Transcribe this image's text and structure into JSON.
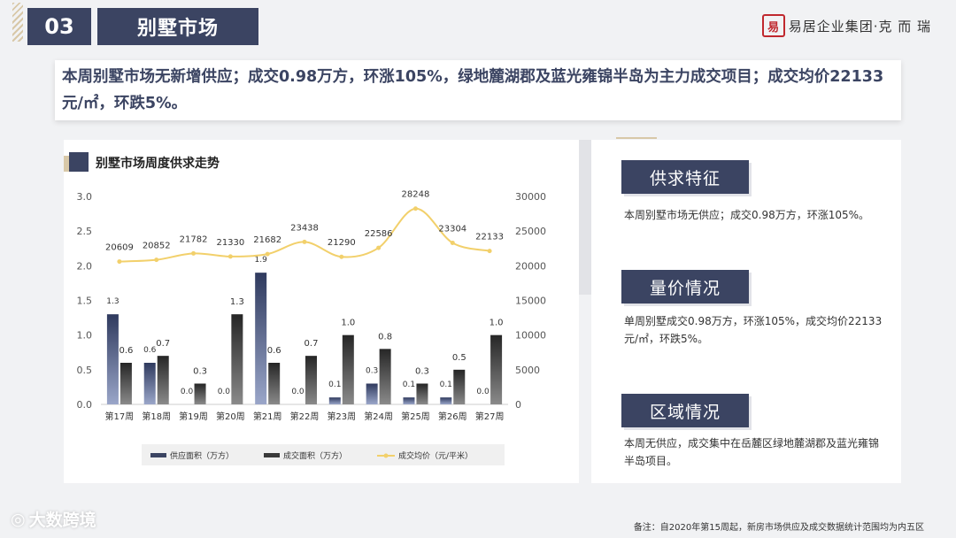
{
  "header": {
    "section_number": "03",
    "section_title": "别墅市场",
    "logo_seal": "易",
    "logo_text": "易居企业集团·克 而 瑞"
  },
  "summary": {
    "text": "本周别墅市场无新增供应；成交0.98万方，环涨105%，绿地麓湖郡及蓝光雍锦半岛为主力成交项目；成交均价22133元/㎡，环跌5%。"
  },
  "chart_title": "别墅市场周度供求走势",
  "chart_data": {
    "type": "bar",
    "categories": [
      "第17周",
      "第18周",
      "第19周",
      "第20周",
      "第21周",
      "第22周",
      "第23周",
      "第24周",
      "第25周",
      "第26周",
      "第27周"
    ],
    "series": [
      {
        "name": "供应面积（万方）",
        "type": "bar",
        "axis": "left",
        "color": "#3b4462",
        "values": [
          1.3,
          0.6,
          0.0,
          0.0,
          1.9,
          0.0,
          0.1,
          0.3,
          0.1,
          0.1,
          0.0
        ],
        "labels": [
          "1.3",
          "0.6",
          "0.0",
          "0.0",
          "1.9",
          "0.0",
          "0.1",
          "0.3",
          "0.1",
          "0.1",
          "0.0"
        ]
      },
      {
        "name": "成交面积（万方）",
        "type": "bar",
        "axis": "left",
        "color": "#3a3a3a",
        "values": [
          0.6,
          0.7,
          0.3,
          1.3,
          0.6,
          0.7,
          1.0,
          0.8,
          0.3,
          0.5,
          1.0
        ],
        "labels": [
          "0.6",
          "0.7",
          "0.3",
          "1.3",
          "0.6",
          "0.7",
          "1.0",
          "0.8",
          "0.3",
          "0.5",
          "1.0"
        ]
      },
      {
        "name": "成交均价（元/平米）",
        "type": "line",
        "axis": "right",
        "color": "#f2d06b",
        "values": [
          20609,
          20852,
          21782,
          21330,
          21682,
          23438,
          21290,
          22586,
          28248,
          23304,
          22133
        ],
        "labels": [
          "20609",
          "20852",
          "21782",
          "21330",
          "21682",
          "23438",
          "21290",
          "22586",
          "28248",
          "23304",
          "22133"
        ]
      }
    ],
    "y_left": {
      "min": 0,
      "max": 3.0,
      "ticks": [
        "0.0",
        "0.5",
        "1.0",
        "1.5",
        "2.0",
        "2.5",
        "3.0"
      ]
    },
    "y_right": {
      "min": 0,
      "max": 30000,
      "ticks": [
        "0",
        "5000",
        "10000",
        "15000",
        "20000",
        "25000",
        "30000"
      ]
    },
    "grid": false,
    "legend_position": "bottom"
  },
  "sections": [
    {
      "title": "供求特征",
      "body": "本周别墅市场无供应；成交0.98万方，环涨105%。"
    },
    {
      "title": "量价情况",
      "body": "单周别墅成交0.98万方，环涨105%，成交均价22133元/㎡，环跌5%。"
    },
    {
      "title": "区域情况",
      "body": "本周无供应，成交集中在岳麓区绿地麓湖郡及蓝光雍锦半岛项目。"
    }
  ],
  "watermark": "大数跨境",
  "footnote": "备注：自2020年第15周起，新房市场供应及成交数据统计范围均为内五区"
}
